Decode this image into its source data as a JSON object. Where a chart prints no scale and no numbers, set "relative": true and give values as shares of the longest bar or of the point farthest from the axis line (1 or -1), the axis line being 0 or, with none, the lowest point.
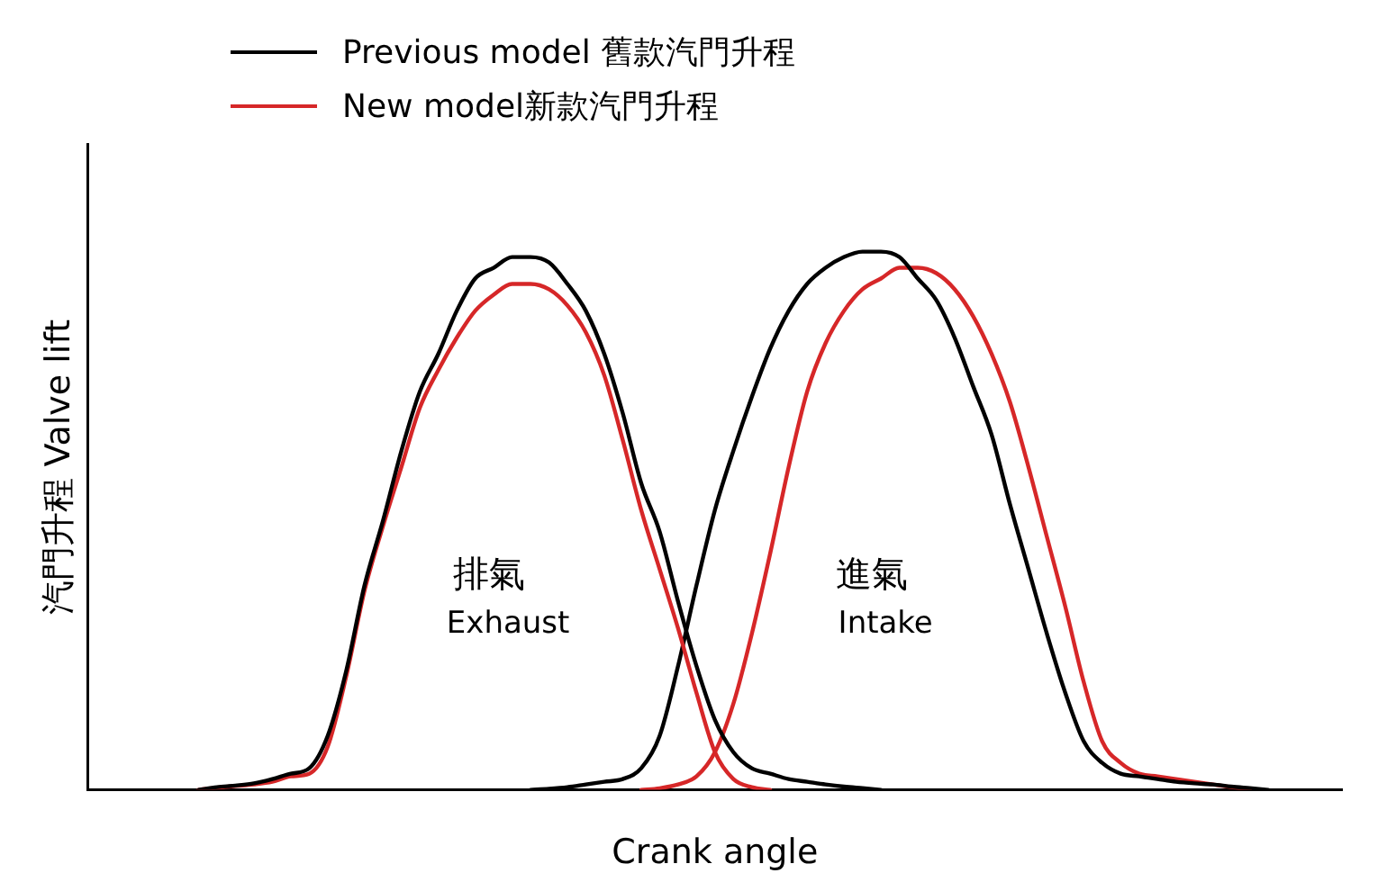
{
  "chart_data": {
    "type": "line",
    "relative": true,
    "xlabel": "Crank angle",
    "ylabel": "汽門升程 Valve lift",
    "legend": "top left",
    "grid": false,
    "marker": "none",
    "line_style": "solid",
    "categories": [
      null,
      null,
      null,
      null,
      null,
      null,
      null,
      null,
      null,
      null,
      null,
      null,
      null,
      null,
      null,
      null,
      null,
      null,
      null,
      null,
      null,
      null,
      null,
      null,
      null,
      null,
      null,
      null,
      null,
      null,
      null,
      null,
      null,
      null,
      null,
      null,
      null,
      null,
      null,
      null,
      null,
      null,
      null,
      null,
      null,
      null,
      null,
      null,
      null,
      null,
      null,
      null,
      null,
      null,
      null,
      null,
      null,
      null,
      null,
      null,
      null,
      null,
      null,
      null,
      null,
      null,
      null,
      null,
      null
    ],
    "series": [
      {
        "name": "Previous model 舊款汽門升程",
        "color": "#000000",
        "values": [
          null,
          null,
          null,
          null,
          null,
          null,
          0,
          0.005,
          0.008,
          0.012,
          0.02,
          0.03,
          0.04,
          0.1,
          0.22,
          0.38,
          0.5,
          0.63,
          0.74,
          0.81,
          0.89,
          0.95,
          0.97,
          0.99,
          0.99,
          0.98,
          0.94,
          0.89,
          0.81,
          0.7,
          0.57,
          0.48,
          0.35,
          0.23,
          0.13,
          0.07,
          0.04,
          0.03,
          0.02,
          0.015,
          0.01,
          0.006,
          0.003,
          0,
          null,
          null,
          null,
          null,
          null,
          null,
          null,
          null,
          null,
          null,
          null,
          null,
          null,
          null,
          null,
          null,
          null,
          null,
          null,
          null,
          null,
          null,
          null,
          null,
          null
        ]
      },
      {
        "name": "New model新款汽門升程",
        "color": "#d62728",
        "values": [
          null,
          null,
          null,
          null,
          null,
          null,
          0,
          0.004,
          0.007,
          0.01,
          0.015,
          0.025,
          0.03,
          0.08,
          0.21,
          0.37,
          0.49,
          0.6,
          0.71,
          0.78,
          0.84,
          0.89,
          0.92,
          0.94,
          0.94,
          0.93,
          0.9,
          0.85,
          0.77,
          0.65,
          0.52,
          0.41,
          0.3,
          0.18,
          0.07,
          0.02,
          0.005,
          0,
          null,
          null,
          null,
          null,
          null,
          null,
          null,
          null,
          null,
          null,
          null,
          null,
          null,
          null,
          null,
          null,
          null,
          null,
          null,
          null,
          null,
          null,
          null,
          null,
          null,
          null,
          null,
          null,
          null,
          null,
          null
        ]
      },
      {
        "color": "#000000",
        "values": [
          null,
          null,
          null,
          null,
          null,
          null,
          null,
          null,
          null,
          null,
          null,
          null,
          null,
          null,
          null,
          null,
          null,
          null,
          null,
          null,
          null,
          null,
          null,
          null,
          0,
          0.002,
          0.005,
          0.01,
          0.015,
          0.02,
          0.04,
          0.1,
          0.23,
          0.38,
          0.52,
          0.63,
          0.73,
          0.82,
          0.89,
          0.94,
          0.97,
          0.99,
          1,
          1,
          0.99,
          0.95,
          0.91,
          0.84,
          0.75,
          0.66,
          0.53,
          0.41,
          0.29,
          0.18,
          0.09,
          0.05,
          0.03,
          0.025,
          0.02,
          0.015,
          0.012,
          0.01,
          0.006,
          0.003,
          0,
          null,
          null,
          null,
          null
        ]
      },
      {
        "color": "#d62728",
        "values": [
          null,
          null,
          null,
          null,
          null,
          null,
          null,
          null,
          null,
          null,
          null,
          null,
          null,
          null,
          null,
          null,
          null,
          null,
          null,
          null,
          null,
          null,
          null,
          null,
          null,
          null,
          null,
          null,
          null,
          null,
          0,
          0.003,
          0.01,
          0.025,
          0.07,
          0.16,
          0.29,
          0.44,
          0.6,
          0.74,
          0.83,
          0.89,
          0.93,
          0.95,
          0.97,
          0.97,
          0.96,
          0.93,
          0.88,
          0.81,
          0.72,
          0.6,
          0.47,
          0.34,
          0.2,
          0.09,
          0.05,
          0.03,
          0.025,
          0.02,
          0.015,
          0.01,
          0.005,
          0,
          null,
          null,
          null,
          null,
          null
        ]
      }
    ],
    "annotations": [
      "排氣",
      "Exhaust",
      "進氣",
      "Intake"
    ]
  }
}
